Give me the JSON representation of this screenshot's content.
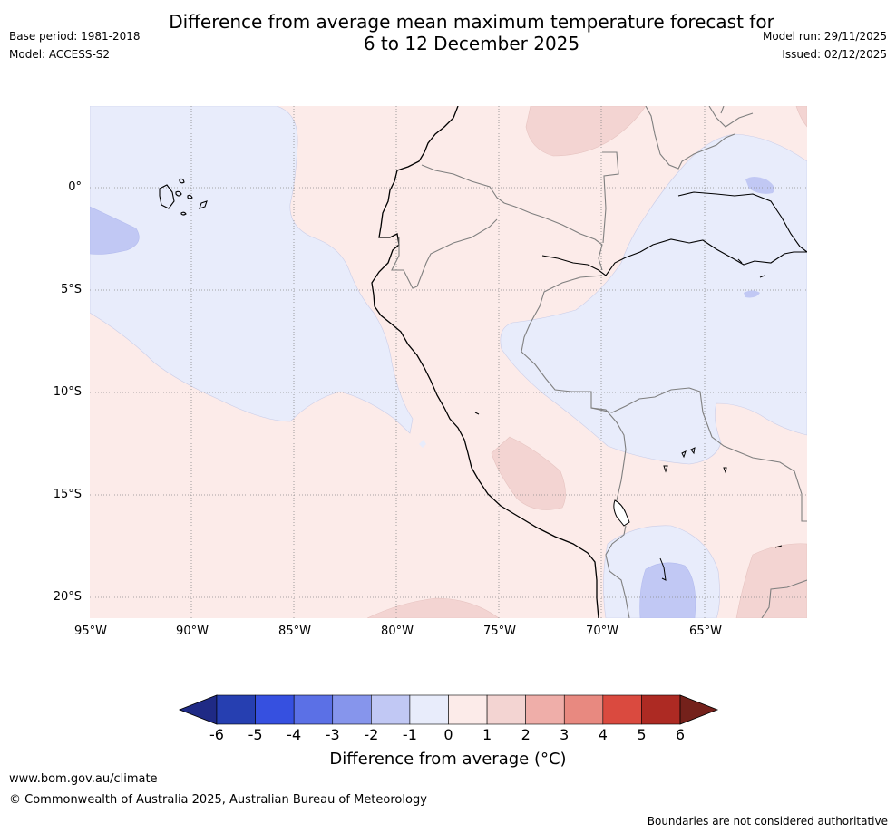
{
  "header": {
    "title_line1": "Difference from average mean maximum temperature forecast for",
    "title_line2": "6 to 12 December 2025",
    "base_period": "Base period: 1981-2018",
    "model": "Model: ACCESS-S2",
    "model_run": "Model run: 29/11/2025",
    "issued": "Issued: 02/12/2025"
  },
  "map": {
    "region": "Western South America (Ecuador, Peru, Bolivia, western Brazil) and eastern Pacific",
    "lat_labels": [
      "0°",
      "5°S",
      "10°S",
      "15°S",
      "20°S"
    ],
    "lon_labels": [
      "95°W",
      "90°W",
      "85°W",
      "80°W",
      "75°W",
      "70°W",
      "65°W"
    ],
    "colors": {
      "zero_to_one": "#fcebe9",
      "one_to_two": "#f3d4d2",
      "minus_one_to_zero": "#e8ecfb",
      "minus_two_to_minus_one": "#c1c8f4",
      "coastline": "#000000",
      "borders": "#7f7f7f",
      "gridline": "#888888"
    }
  },
  "colorbar": {
    "ticks": [
      "-6",
      "-5",
      "-4",
      "-3",
      "-2",
      "-1",
      "0",
      "1",
      "2",
      "3",
      "4",
      "5",
      "6"
    ],
    "colors": [
      "#1f2a85",
      "#263fb1",
      "#3650e0",
      "#5b70e6",
      "#8695ec",
      "#c1c8f4",
      "#e8ecfb",
      "#fcebe9",
      "#f3d4d2",
      "#efaea9",
      "#e88980",
      "#da4a3f",
      "#ad2a23",
      "#74211b"
    ],
    "label": "Difference from average (°C)"
  },
  "footer": {
    "url": "www.bom.gov.au/climate",
    "copyright": "© Commonwealth of Australia 2025, Australian Bureau of Meteorology",
    "note": "Boundaries are not considered authoritative"
  }
}
